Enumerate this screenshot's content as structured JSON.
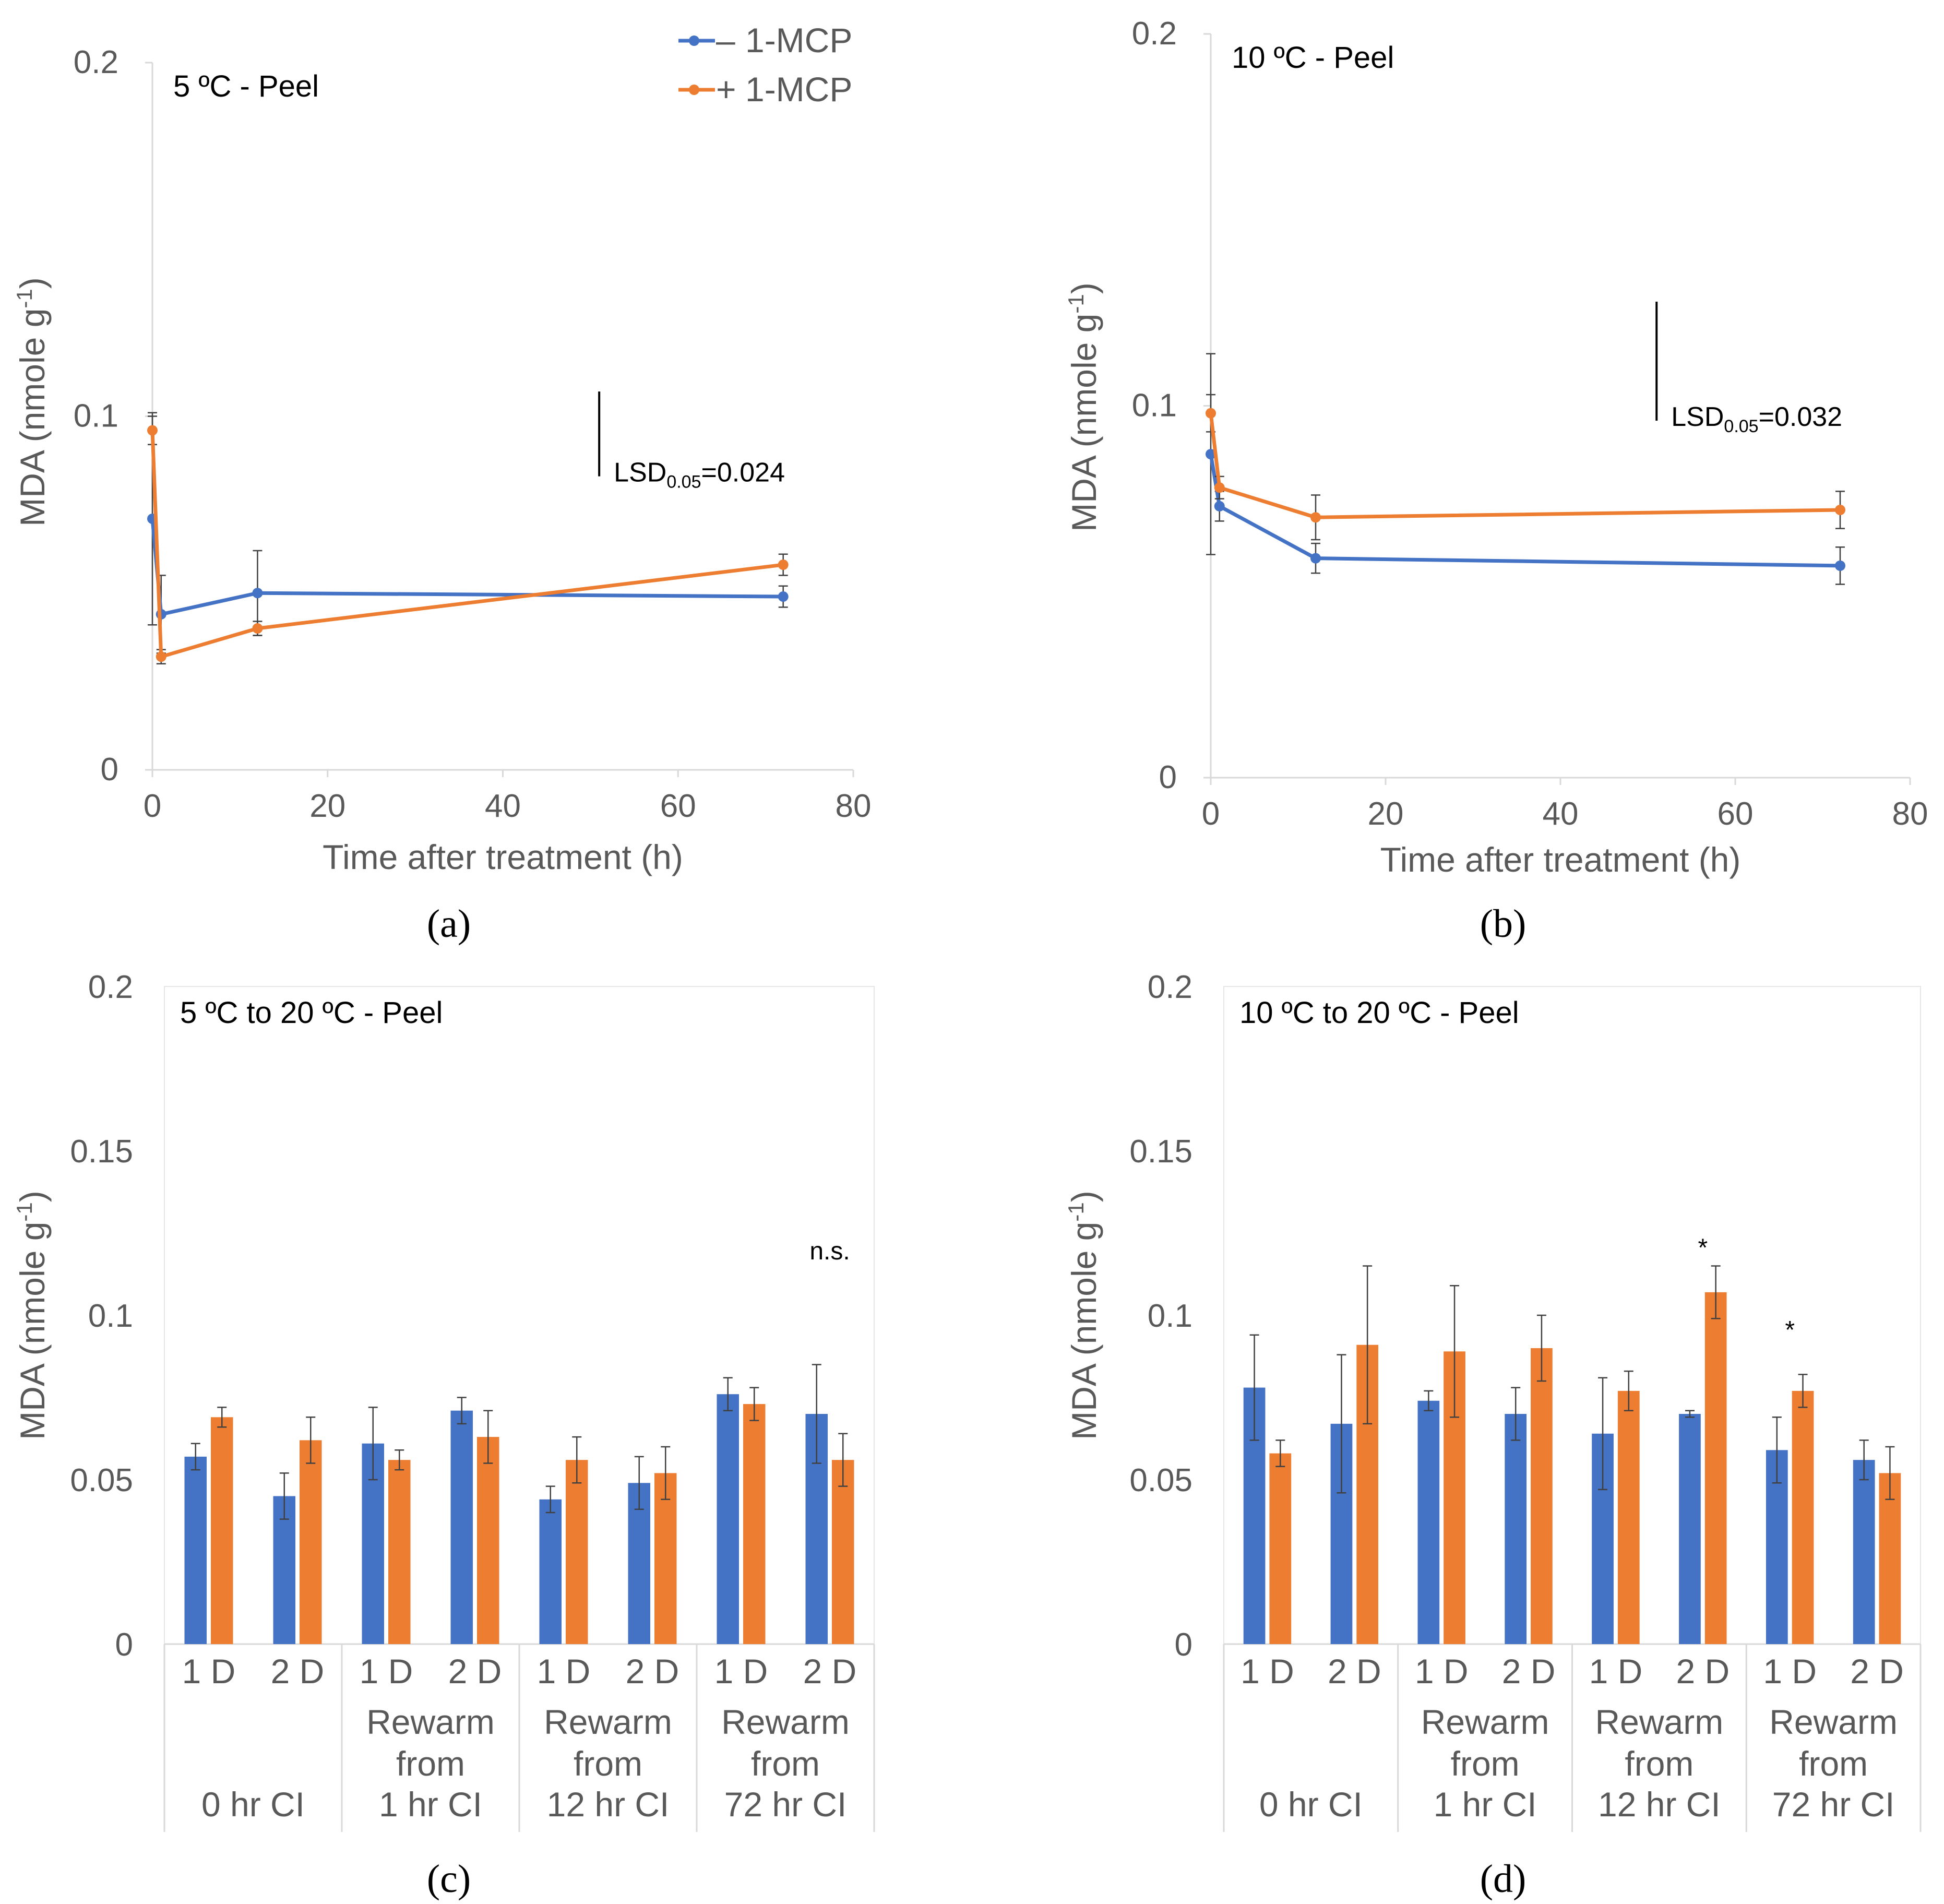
{
  "colors": {
    "minus_mcp": "#4472C4",
    "plus_mcp": "#ED7D31",
    "axis": "#D9D9D9",
    "tick_text": "#595959",
    "error_bar": "#404040"
  },
  "legend": {
    "entries": [
      {
        "symbol": "–",
        "label": "1-MCP",
        "series": "minus"
      },
      {
        "symbol": "+",
        "label": "1-MCP",
        "series": "plus"
      }
    ]
  },
  "chart_data": [
    {
      "id": "a",
      "type": "line",
      "title": "5 ºC - Peel",
      "caption": "(a)",
      "xlabel": "Time after treatment (h)",
      "ylabel_main": "MDA (nmole g",
      "ylabel_sup": "-1",
      "ylabel_end": ")",
      "xlim": [
        0,
        80
      ],
      "ylim": [
        0,
        0.2
      ],
      "xticks": [
        "0",
        "20",
        "40",
        "60",
        "80"
      ],
      "xtick_values": [
        0,
        20,
        40,
        60,
        80
      ],
      "yticks": [
        "0",
        "0.1",
        "0.2"
      ],
      "ytick_values": [
        0,
        0.1,
        0.2
      ],
      "lsd": {
        "prefix": "LSD",
        "sub": "0.05",
        "value": "=0.024",
        "at_x": 51,
        "y_top": 0.107,
        "y_bottom": 0.083
      },
      "series": [
        {
          "name": "– 1-MCP",
          "key": "minus",
          "x": [
            0,
            1,
            12,
            72
          ],
          "y": [
            0.071,
            0.044,
            0.05,
            0.049
          ],
          "err": [
            0.03,
            0.011,
            0.012,
            0.003
          ]
        },
        {
          "name": "+ 1-MCP",
          "key": "plus",
          "x": [
            0,
            1,
            12,
            72
          ],
          "y": [
            0.096,
            0.032,
            0.04,
            0.058
          ],
          "err": [
            0.004,
            0.002,
            0.002,
            0.003
          ]
        }
      ]
    },
    {
      "id": "b",
      "type": "line",
      "title": "10 ºC - Peel",
      "caption": "(b)",
      "xlabel": "Time after treatment (h)",
      "ylabel_main": "MDA (nmole g",
      "ylabel_sup": "-1",
      "ylabel_end": ")",
      "xlim": [
        0,
        80
      ],
      "ylim": [
        0,
        0.2
      ],
      "xticks": [
        "0",
        "20",
        "40",
        "60",
        "80"
      ],
      "xtick_values": [
        0,
        20,
        40,
        60,
        80
      ],
      "yticks": [
        "0",
        "0.1",
        "0.2"
      ],
      "ytick_values": [
        0,
        0.1,
        0.2
      ],
      "lsd": {
        "prefix": "LSD",
        "sub": "0.05",
        "value": "=0.032",
        "at_x": 51,
        "y_top": 0.128,
        "y_bottom": 0.096
      },
      "series": [
        {
          "name": "– 1-MCP",
          "key": "minus",
          "x": [
            0,
            1,
            12,
            72
          ],
          "y": [
            0.087,
            0.073,
            0.059,
            0.057
          ],
          "err": [
            0.027,
            0.004,
            0.004,
            0.005
          ]
        },
        {
          "name": "+ 1-MCP",
          "key": "plus",
          "x": [
            0,
            1,
            12,
            72
          ],
          "y": [
            0.098,
            0.078,
            0.07,
            0.072
          ],
          "err": [
            0.005,
            0.003,
            0.006,
            0.005
          ]
        }
      ]
    },
    {
      "id": "c",
      "type": "bar",
      "title": "5 ºC to 20 ºC - Peel",
      "caption": "(c)",
      "ylabel_main": "MDA (nmole g",
      "ylabel_sup": "-1",
      "ylabel_end": ")",
      "ylim": [
        0,
        0.2
      ],
      "yticks": [
        "0",
        "0.05",
        "0.1",
        "0.15",
        "0.2"
      ],
      "ytick_values": [
        0,
        0.05,
        0.1,
        0.15,
        0.2
      ],
      "groups": [
        {
          "lines": [
            "0 hr CI"
          ],
          "days": [
            "1 D",
            "2 D"
          ]
        },
        {
          "lines": [
            "Rewarm",
            "from",
            "1 hr CI"
          ],
          "days": [
            "1 D",
            "2 D"
          ]
        },
        {
          "lines": [
            "Rewarm",
            "from",
            "12 hr CI"
          ],
          "days": [
            "1 D",
            "2 D"
          ]
        },
        {
          "lines": [
            "Rewarm",
            "from",
            "72 hr CI"
          ],
          "days": [
            "1 D",
            "2 D"
          ]
        }
      ],
      "categories": [
        "0 hr CI 1 D",
        "0 hr CI 2 D",
        "Rewarm from 1 hr CI 1 D",
        "Rewarm from 1 hr CI 2 D",
        "Rewarm from 12 hr CI 1 D",
        "Rewarm from 12 hr CI 2 D",
        "Rewarm from 72 hr CI 1 D",
        "Rewarm from 72 hr CI 2 D"
      ],
      "series": [
        {
          "name": "– 1-MCP",
          "key": "minus",
          "values": [
            0.057,
            0.045,
            0.061,
            0.071,
            0.044,
            0.049,
            0.076,
            0.07
          ],
          "err": [
            0.004,
            0.007,
            0.011,
            0.004,
            0.004,
            0.008,
            0.005,
            0.015
          ]
        },
        {
          "name": "+ 1-MCP",
          "key": "plus",
          "values": [
            0.069,
            0.062,
            0.056,
            0.063,
            0.056,
            0.052,
            0.073,
            0.056
          ],
          "err": [
            0.003,
            0.007,
            0.003,
            0.008,
            0.007,
            0.008,
            0.005,
            0.008
          ]
        }
      ],
      "annotations": [
        {
          "text": "n.s.",
          "category_index": 7,
          "y": 0.117
        }
      ]
    },
    {
      "id": "d",
      "type": "bar",
      "title": "10 ºC to 20 ºC - Peel",
      "caption": "(d)",
      "ylabel_main": "MDA (nmole g",
      "ylabel_sup": "-1",
      "ylabel_end": ")",
      "ylim": [
        0,
        0.2
      ],
      "yticks": [
        "0",
        "0.05",
        "0.1",
        "0.15",
        "0.2"
      ],
      "ytick_values": [
        0,
        0.05,
        0.1,
        0.15,
        0.2
      ],
      "groups": [
        {
          "lines": [
            "0 hr CI"
          ],
          "days": [
            "1 D",
            "2 D"
          ]
        },
        {
          "lines": [
            "Rewarm",
            "from",
            "1 hr CI"
          ],
          "days": [
            "1 D",
            "2 D"
          ]
        },
        {
          "lines": [
            "Rewarm",
            "from",
            "12 hr CI"
          ],
          "days": [
            "1 D",
            "2 D"
          ]
        },
        {
          "lines": [
            "Rewarm",
            "from",
            "72 hr CI"
          ],
          "days": [
            "1 D",
            "2 D"
          ]
        }
      ],
      "categories": [
        "0 hr CI 1 D",
        "0 hr CI 2 D",
        "Rewarm from 1 hr CI 1 D",
        "Rewarm from 1 hr CI 2 D",
        "Rewarm from 12 hr CI 1 D",
        "Rewarm from 12 hr CI 2 D",
        "Rewarm from 72 hr CI 1 D",
        "Rewarm from 72 hr CI 2 D"
      ],
      "series": [
        {
          "name": "– 1-MCP",
          "key": "minus",
          "values": [
            0.078,
            0.067,
            0.074,
            0.07,
            0.064,
            0.07,
            0.059,
            0.056
          ],
          "err": [
            0.016,
            0.021,
            0.003,
            0.008,
            0.017,
            0.001,
            0.01,
            0.006
          ]
        },
        {
          "name": "+ 1-MCP",
          "key": "plus",
          "values": [
            0.058,
            0.091,
            0.089,
            0.09,
            0.077,
            0.107,
            0.077,
            0.052
          ],
          "err": [
            0.004,
            0.024,
            0.02,
            0.01,
            0.006,
            0.008,
            0.005,
            0.008
          ]
        }
      ],
      "annotations": [
        {
          "text": "*",
          "category_index": 5,
          "y": 0.118
        },
        {
          "text": "*",
          "category_index": 6,
          "y": 0.093
        }
      ]
    }
  ]
}
